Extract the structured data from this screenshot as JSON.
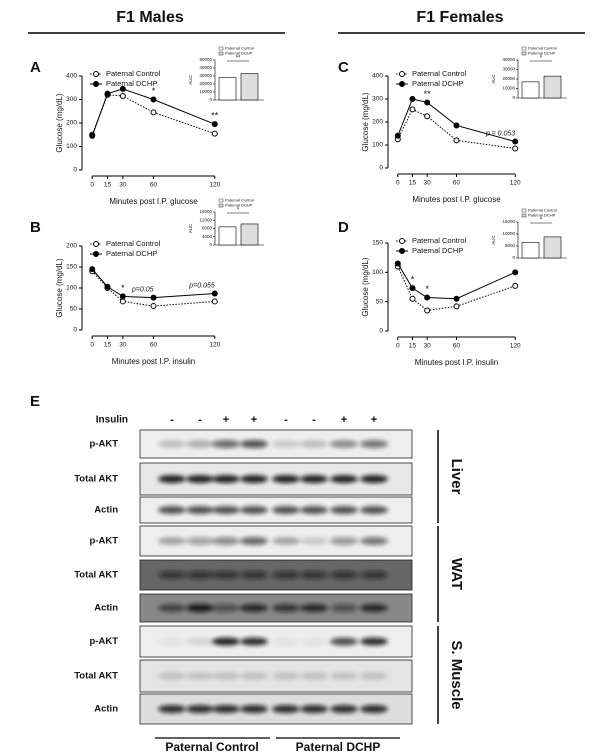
{
  "headers": [
    "F1 Males",
    "F1 Females"
  ],
  "chart_data": [
    {
      "type": "line",
      "panel": "A",
      "ylabel": "Glucose (mg/dL)",
      "xlabel": "Minutes post I.P. glucose",
      "x": [
        0,
        15,
        30,
        60,
        120
      ],
      "xlim": [
        -10,
        130
      ],
      "xticks": [
        0,
        15,
        30,
        60,
        120
      ],
      "ylim": [
        0,
        400
      ],
      "yticks": [
        0,
        100,
        200,
        300,
        400
      ],
      "legend": "upper left",
      "series": [
        {
          "name": "Paternal Control",
          "color": "#000",
          "dash": "dotted",
          "marker": "open",
          "values": [
            150,
            320,
            315,
            245,
            155
          ]
        },
        {
          "name": "Paternal DCHP",
          "color": "#000",
          "dash": "solid",
          "marker": "filled",
          "values": [
            145,
            325,
            345,
            300,
            195
          ]
        }
      ],
      "annotations": [
        {
          "text": "*",
          "x": 60
        },
        {
          "text": "**",
          "x": 120
        }
      ]
    },
    {
      "type": "bar",
      "ylabel": "AUC",
      "categories": [
        "Paternal Control",
        "Paternal DCHP"
      ],
      "colors": [
        "#ffffff",
        "#dddddd"
      ],
      "values": [
        28000,
        33000
      ],
      "ylim": [
        0,
        50000
      ],
      "yticks": [
        0,
        10000,
        20000,
        30000,
        40000,
        50000
      ],
      "annotations": [
        {
          "text": "**"
        }
      ]
    },
    {
      "type": "line",
      "panel": "B",
      "ylabel": "Glucose (mg/dL)",
      "xlabel": "Minutes post I.P. insulin",
      "x": [
        0,
        15,
        30,
        60,
        120
      ],
      "xlim": [
        -10,
        130
      ],
      "xticks": [
        0,
        15,
        30,
        60,
        120
      ],
      "ylim": [
        0,
        200
      ],
      "yticks": [
        0,
        50,
        100,
        150,
        200
      ],
      "legend": "upper left",
      "series": [
        {
          "name": "Paternal Control",
          "color": "#000",
          "dash": "dotted",
          "marker": "open",
          "values": [
            140,
            100,
            68,
            57,
            68
          ]
        },
        {
          "name": "Paternal DCHP",
          "color": "#000",
          "dash": "solid",
          "marker": "filled",
          "values": [
            145,
            103,
            80,
            77,
            87
          ]
        }
      ],
      "annotations": [
        {
          "text": "*",
          "x": 30
        },
        {
          "text": "p=0.05",
          "x": 60
        },
        {
          "text": "p=0.055",
          "x": 120
        }
      ]
    },
    {
      "type": "bar",
      "ylabel": "AUC",
      "categories": [
        "Paternal Control",
        "Paternal DCHP"
      ],
      "colors": [
        "#ffffff",
        "#dddddd"
      ],
      "values": [
        8800,
        10200
      ],
      "ylim": [
        0,
        16000
      ],
      "yticks": [
        0,
        4000,
        8000,
        12000,
        16000
      ],
      "annotations": [
        {
          "text": "*"
        }
      ]
    },
    {
      "type": "line",
      "panel": "C",
      "ylabel": "Glucose (mg/dL)",
      "xlabel": "Minutes post I.P. glucose",
      "x": [
        0,
        15,
        30,
        60,
        120
      ],
      "xlim": [
        -10,
        130
      ],
      "xticks": [
        0,
        15,
        30,
        60,
        120
      ],
      "ylim": [
        0,
        400
      ],
      "yticks": [
        0,
        100,
        200,
        300,
        400
      ],
      "legend": "upper left",
      "series": [
        {
          "name": "Paternal Control",
          "color": "#000",
          "dash": "dotted",
          "marker": "open",
          "values": [
            125,
            255,
            225,
            120,
            85
          ]
        },
        {
          "name": "Paternal DCHP",
          "color": "#000",
          "dash": "solid",
          "marker": "filled",
          "values": [
            140,
            300,
            285,
            185,
            115
          ]
        }
      ],
      "annotations": [
        {
          "text": "**",
          "x": 30
        },
        {
          "text": "p = 0.053",
          "x": 120
        }
      ]
    },
    {
      "type": "bar",
      "ylabel": "AUC",
      "categories": [
        "Paternal Control",
        "Paternal DCHP"
      ],
      "colors": [
        "#ffffff",
        "#dddddd"
      ],
      "values": [
        17000,
        23000
      ],
      "ylim": [
        0,
        40000
      ],
      "yticks": [
        0,
        10000,
        20000,
        30000,
        40000
      ],
      "annotations": [
        {
          "text": "*"
        }
      ]
    },
    {
      "type": "line",
      "panel": "D",
      "ylabel": "Glucose (mg/dL)",
      "xlabel": "Minutes post I.P. insulin",
      "x": [
        0,
        15,
        30,
        60,
        120
      ],
      "xlim": [
        -10,
        130
      ],
      "xticks": [
        0,
        15,
        30,
        60,
        120
      ],
      "ylim": [
        0,
        150
      ],
      "yticks": [
        0,
        50,
        100,
        150
      ],
      "legend": "upper left",
      "series": [
        {
          "name": "Paternal Control",
          "color": "#000",
          "dash": "dotted",
          "marker": "open",
          "values": [
            110,
            55,
            35,
            42,
            77
          ]
        },
        {
          "name": "Paternal DCHP",
          "color": "#000",
          "dash": "solid",
          "marker": "filled",
          "values": [
            115,
            73,
            57,
            55,
            100
          ]
        }
      ],
      "annotations": [
        {
          "text": "*",
          "x": 15
        },
        {
          "text": "*",
          "x": 30
        }
      ]
    },
    {
      "type": "bar",
      "ylabel": "AUC",
      "categories": [
        "Paternal Control",
        "Paternal DCHP"
      ],
      "colors": [
        "#ffffff",
        "#dddddd"
      ],
      "values": [
        6500,
        8800
      ],
      "ylim": [
        0,
        15000
      ],
      "yticks": [
        0,
        5000,
        10000,
        15000
      ],
      "annotations": [
        {
          "text": "*"
        }
      ]
    }
  ],
  "blot": {
    "panel": "E",
    "insulin_label": "Insulin",
    "insulin": [
      "-",
      "-",
      "+",
      "+",
      "-",
      "-",
      "+",
      "+"
    ],
    "tissues": [
      {
        "name": "Liver",
        "rows": [
          "p-AKT",
          "Total AKT",
          "Actin"
        ]
      },
      {
        "name": "WAT",
        "rows": [
          "p-AKT",
          "Total AKT",
          "Actin"
        ]
      },
      {
        "name": "S. Muscle",
        "rows": [
          "p-AKT",
          "Total AKT",
          "Actin"
        ]
      }
    ],
    "groups": [
      "Paternal Control",
      "Paternal DCHP"
    ]
  }
}
